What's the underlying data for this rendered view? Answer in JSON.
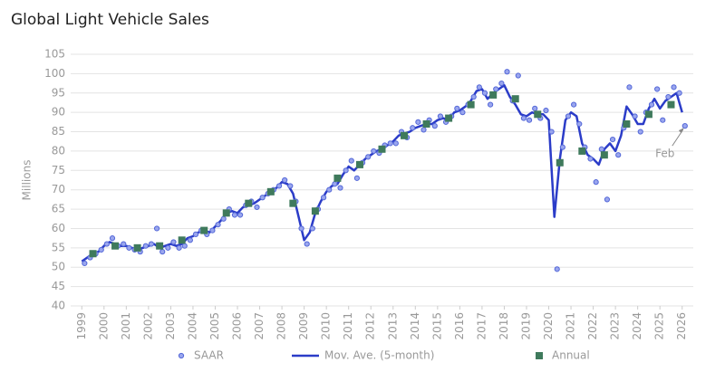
{
  "chart_data": {
    "type": "line",
    "title": "Global Light Vehicle Sales",
    "y_label": "Millions",
    "xlim": [
      1998.5,
      2026.5
    ],
    "xticks": [
      1999,
      2000,
      2001,
      2002,
      2003,
      2004,
      2005,
      2006,
      2007,
      2008,
      2009,
      2010,
      2011,
      2012,
      2013,
      2014,
      2015,
      2016,
      2017,
      2018,
      2019,
      2020,
      2021,
      2022,
      2023,
      2024,
      2025,
      2026
    ],
    "ylim": [
      40,
      105
    ],
    "yticks": [
      40,
      45,
      50,
      55,
      60,
      65,
      70,
      75,
      80,
      85,
      90,
      95,
      100,
      105
    ],
    "grid": true,
    "legend": "bottom",
    "annotation": {
      "text": "Feb",
      "x": 2026.125,
      "y": 86.5
    },
    "series": [
      {
        "name": "SAAR",
        "type": "scatter",
        "color": "#5468d8",
        "x": [
          1999.125,
          1999.375,
          1999.625,
          1999.875,
          2000.125,
          2000.375,
          2000.625,
          2000.875,
          2001.125,
          2001.375,
          2001.625,
          2001.875,
          2002.125,
          2002.375,
          2002.625,
          2002.875,
          2003.125,
          2003.375,
          2003.625,
          2003.875,
          2004.125,
          2004.375,
          2004.625,
          2004.875,
          2005.125,
          2005.375,
          2005.625,
          2005.875,
          2006.125,
          2006.375,
          2006.625,
          2006.875,
          2007.125,
          2007.375,
          2007.625,
          2007.875,
          2008.125,
          2008.375,
          2008.625,
          2008.875,
          2009.125,
          2009.375,
          2009.625,
          2009.875,
          2010.125,
          2010.375,
          2010.625,
          2010.875,
          2011.125,
          2011.375,
          2011.625,
          2011.875,
          2012.125,
          2012.375,
          2012.625,
          2012.875,
          2013.125,
          2013.375,
          2013.625,
          2013.875,
          2014.125,
          2014.375,
          2014.625,
          2014.875,
          2015.125,
          2015.375,
          2015.625,
          2015.875,
          2016.125,
          2016.375,
          2016.625,
          2016.875,
          2017.125,
          2017.375,
          2017.625,
          2017.875,
          2018.125,
          2018.375,
          2018.625,
          2018.875,
          2019.125,
          2019.375,
          2019.625,
          2019.875,
          2020.125,
          2020.375,
          2020.625,
          2020.875,
          2021.125,
          2021.375,
          2021.625,
          2021.875,
          2022.125,
          2022.375,
          2022.625,
          2022.875,
          2023.125,
          2023.375,
          2023.625,
          2023.875,
          2024.125,
          2024.375,
          2024.625,
          2024.875,
          2025.125,
          2025.375,
          2025.625,
          2025.875,
          2026.125
        ],
        "values": [
          51,
          52.5,
          53.5,
          54.5,
          56,
          57.5,
          55.5,
          56,
          55,
          54.5,
          54,
          55.5,
          56,
          60,
          54,
          55,
          56.5,
          55,
          55.5,
          57,
          58.5,
          59.5,
          58.5,
          59.5,
          61,
          62.5,
          65,
          63.5,
          63.5,
          66,
          67,
          65.5,
          68,
          69,
          70,
          71,
          72.5,
          71,
          67,
          60,
          56,
          60,
          65,
          68,
          70,
          71.5,
          70.5,
          75,
          77.5,
          73,
          77,
          78.5,
          80,
          79.5,
          81.5,
          82,
          82,
          85,
          83.5,
          86,
          87.5,
          85.5,
          88,
          86.5,
          89,
          87.5,
          89,
          91,
          90,
          92,
          94,
          96.5,
          95,
          92,
          96,
          97.5,
          100.5,
          93,
          99.5,
          88.5,
          88,
          91,
          88.5,
          90.5,
          85,
          49.5,
          81,
          89,
          92,
          87,
          81,
          78,
          72,
          80.5,
          67.5,
          83,
          79,
          86,
          96.5,
          89,
          85,
          90,
          92,
          96,
          88,
          94,
          96.5,
          95,
          86.5
        ]
      },
      {
        "name": "Mov. Ave. (5-month)",
        "type": "line",
        "color": "#2b3cc8",
        "x": [
          1999,
          1999.25,
          1999.5,
          1999.75,
          2000,
          2000.25,
          2000.5,
          2000.75,
          2001,
          2001.25,
          2001.5,
          2001.75,
          2002,
          2002.25,
          2002.5,
          2002.75,
          2003,
          2003.25,
          2003.5,
          2003.75,
          2004,
          2004.25,
          2004.5,
          2004.75,
          2005,
          2005.25,
          2005.5,
          2005.75,
          2006,
          2006.25,
          2006.5,
          2006.75,
          2007,
          2007.25,
          2007.5,
          2007.75,
          2008,
          2008.25,
          2008.5,
          2008.75,
          2009,
          2009.25,
          2009.5,
          2009.75,
          2010,
          2010.25,
          2010.5,
          2010.75,
          2011,
          2011.25,
          2011.5,
          2011.75,
          2012,
          2012.25,
          2012.5,
          2012.75,
          2013,
          2013.25,
          2013.5,
          2013.75,
          2014,
          2014.25,
          2014.5,
          2014.75,
          2015,
          2015.25,
          2015.5,
          2015.75,
          2016,
          2016.25,
          2016.5,
          2016.75,
          2017,
          2017.25,
          2017.5,
          2017.75,
          2018,
          2018.25,
          2018.5,
          2018.75,
          2019,
          2019.25,
          2019.5,
          2019.75,
          2020,
          2020.25,
          2020.5,
          2020.75,
          2021,
          2021.25,
          2021.5,
          2021.75,
          2022,
          2022.25,
          2022.5,
          2022.75,
          2023,
          2023.25,
          2023.5,
          2023.75,
          2024,
          2024.25,
          2024.5,
          2024.75,
          2025,
          2025.25,
          2025.5,
          2025.75,
          2026
        ],
        "values": [
          51.5,
          52.5,
          53.5,
          54,
          55.5,
          56.5,
          56,
          55.5,
          55.5,
          55,
          54.5,
          55,
          55.5,
          56,
          55,
          55.5,
          56,
          55.5,
          56,
          57.5,
          58,
          59,
          59.5,
          59,
          60.5,
          62,
          64,
          64.5,
          64,
          65.5,
          66,
          66.5,
          67.5,
          68.5,
          69.5,
          70.5,
          72,
          71.5,
          69,
          63,
          57,
          59,
          64,
          67,
          69.5,
          71,
          71.5,
          74,
          76,
          75,
          76.5,
          78,
          79,
          80,
          80.5,
          81.5,
          82.5,
          84,
          84.5,
          85,
          86,
          86.5,
          87,
          87,
          88,
          88.5,
          88,
          90,
          90.5,
          91.5,
          93,
          95.5,
          96,
          93.5,
          95,
          96,
          97,
          94,
          92,
          89.5,
          89,
          90,
          89.5,
          89.5,
          88,
          63,
          78,
          88,
          90,
          89,
          82,
          79,
          78,
          76.5,
          80.5,
          82,
          80,
          84,
          91.5,
          89.5,
          87,
          87,
          91,
          93.5,
          91,
          93,
          94,
          95,
          90
        ]
      },
      {
        "name": "Annual",
        "type": "square",
        "color": "#3f7a5c",
        "x": [
          1999.5,
          2000.5,
          2001.5,
          2002.5,
          2003.5,
          2004.5,
          2005.5,
          2006.5,
          2007.5,
          2008.5,
          2009.5,
          2010.5,
          2011.5,
          2012.5,
          2013.5,
          2014.5,
          2015.5,
          2016.5,
          2017.5,
          2018.5,
          2019.5,
          2020.5,
          2021.5,
          2022.5,
          2023.5,
          2024.5,
          2025.5
        ],
        "values": [
          53.5,
          55.5,
          55,
          55.5,
          57,
          59.5,
          64,
          66.5,
          69.5,
          66.5,
          64.5,
          73,
          76.5,
          80.5,
          84,
          87,
          88.5,
          92,
          94.5,
          93.5,
          89.5,
          77,
          80,
          79,
          87,
          89.5,
          92
        ]
      }
    ]
  }
}
